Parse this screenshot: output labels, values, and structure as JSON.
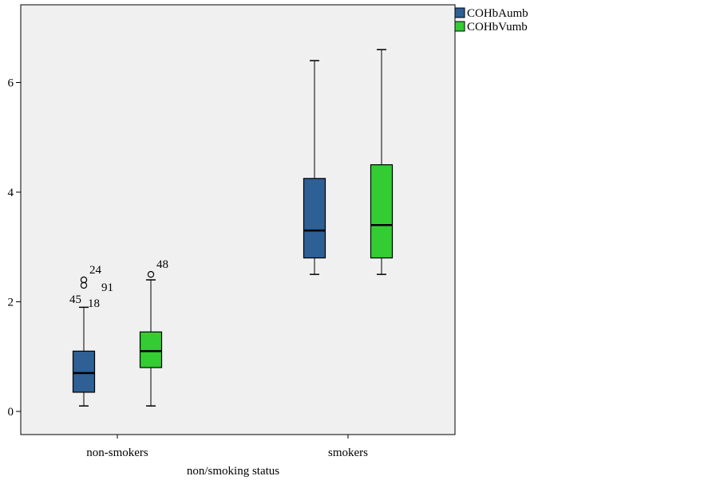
{
  "chart_data": {
    "type": "boxplot",
    "xlabel": "non/smoking status",
    "ylabel": "",
    "categories": [
      "non-smokers",
      "smokers"
    ],
    "ylim": [
      -0.4,
      7.3
    ],
    "yticks": [
      0,
      2,
      4,
      6
    ],
    "grid": false,
    "legend_position": "top-right",
    "series": [
      {
        "name": "COHbAumb",
        "color": "#2E5F95",
        "boxes": [
          {
            "min": 0.1,
            "q1": 0.35,
            "median": 0.7,
            "q3": 1.1,
            "max": 1.9,
            "outliers": [
              {
                "value": 2.4,
                "label": "24"
              },
              {
                "value": 2.3,
                "label": "91"
              },
              {
                "value": 2.3,
                "label": "45"
              },
              {
                "value": 2.3,
                "label": "18"
              }
            ]
          },
          {
            "min": 2.5,
            "q1": 2.8,
            "median": 3.3,
            "q3": 4.25,
            "max": 6.4,
            "outliers": []
          }
        ]
      },
      {
        "name": "COHbVumb",
        "color": "#33CC33",
        "boxes": [
          {
            "min": 0.1,
            "q1": 0.8,
            "median": 1.1,
            "q3": 1.45,
            "max": 2.4,
            "outliers": [
              {
                "value": 2.5,
                "label": "48"
              }
            ]
          },
          {
            "min": 2.5,
            "q1": 2.8,
            "median": 3.4,
            "q3": 4.5,
            "max": 6.6,
            "outliers": []
          }
        ]
      }
    ]
  }
}
